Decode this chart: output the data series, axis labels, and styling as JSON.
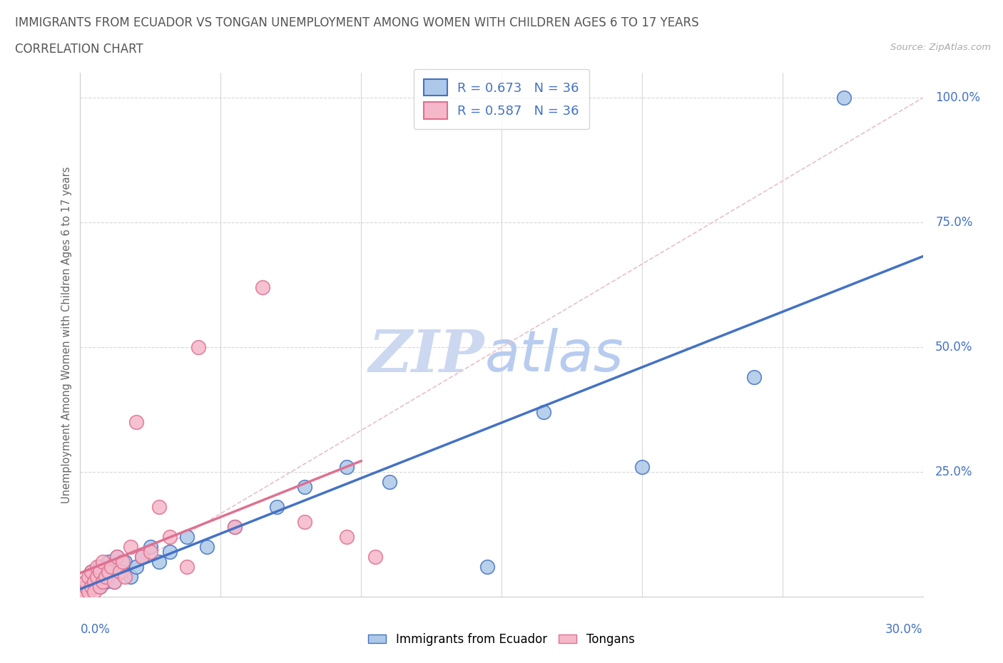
{
  "title_line1": "IMMIGRANTS FROM ECUADOR VS TONGAN UNEMPLOYMENT AMONG WOMEN WITH CHILDREN AGES 6 TO 17 YEARS",
  "title_line2": "CORRELATION CHART",
  "source_text": "Source: ZipAtlas.com",
  "ylabel_label": "Unemployment Among Women with Children Ages 6 to 17 years",
  "xmin": 0.0,
  "xmax": 0.3,
  "ymin": 0.0,
  "ymax": 1.05,
  "ecuador_R": 0.673,
  "ecuador_N": 36,
  "tongan_R": 0.587,
  "tongan_N": 36,
  "ecuador_face_color": "#adc8e8",
  "ecuador_edge_color": "#4472c4",
  "tongan_face_color": "#f5b8ca",
  "tongan_edge_color": "#e07090",
  "diag_color": "#e8c0c8",
  "watermark_zip_color": "#ccd8f0",
  "watermark_atlas_color": "#b8ccf0",
  "grid_color": "#d8d8d8",
  "axis_label_color": "#4472c4",
  "title_color": "#555555",
  "ecuador_x": [
    0.002,
    0.003,
    0.004,
    0.004,
    0.005,
    0.005,
    0.006,
    0.007,
    0.007,
    0.008,
    0.009,
    0.01,
    0.01,
    0.011,
    0.012,
    0.013,
    0.015,
    0.016,
    0.018,
    0.02,
    0.022,
    0.025,
    0.028,
    0.032,
    0.038,
    0.045,
    0.055,
    0.07,
    0.08,
    0.095,
    0.11,
    0.145,
    0.165,
    0.2,
    0.24,
    0.272
  ],
  "ecuador_y": [
    0.02,
    0.01,
    0.03,
    0.05,
    0.02,
    0.04,
    0.03,
    0.06,
    0.02,
    0.05,
    0.03,
    0.04,
    0.07,
    0.05,
    0.03,
    0.08,
    0.05,
    0.07,
    0.04,
    0.06,
    0.08,
    0.1,
    0.07,
    0.09,
    0.12,
    0.1,
    0.14,
    0.18,
    0.22,
    0.26,
    0.23,
    0.06,
    0.37,
    0.26,
    0.44,
    1.0
  ],
  "tongan_x": [
    0.001,
    0.002,
    0.002,
    0.003,
    0.003,
    0.004,
    0.004,
    0.005,
    0.005,
    0.006,
    0.006,
    0.007,
    0.007,
    0.008,
    0.008,
    0.009,
    0.01,
    0.011,
    0.012,
    0.013,
    0.014,
    0.015,
    0.016,
    0.018,
    0.02,
    0.022,
    0.025,
    0.028,
    0.032,
    0.038,
    0.042,
    0.055,
    0.065,
    0.08,
    0.095,
    0.105
  ],
  "tongan_y": [
    0.01,
    0.02,
    0.03,
    0.01,
    0.04,
    0.02,
    0.05,
    0.03,
    0.01,
    0.04,
    0.06,
    0.02,
    0.05,
    0.03,
    0.07,
    0.04,
    0.05,
    0.06,
    0.03,
    0.08,
    0.05,
    0.07,
    0.04,
    0.1,
    0.35,
    0.08,
    0.09,
    0.18,
    0.12,
    0.06,
    0.5,
    0.14,
    0.62,
    0.15,
    0.12,
    0.08
  ],
  "y_tick_positions": [
    0.0,
    0.25,
    0.5,
    0.75,
    1.0
  ],
  "y_tick_labels": [
    "",
    "25.0%",
    "50.0%",
    "75.0%",
    "100.0%"
  ],
  "x_grid_positions": [
    0.05,
    0.1,
    0.15,
    0.2,
    0.25,
    0.3
  ]
}
